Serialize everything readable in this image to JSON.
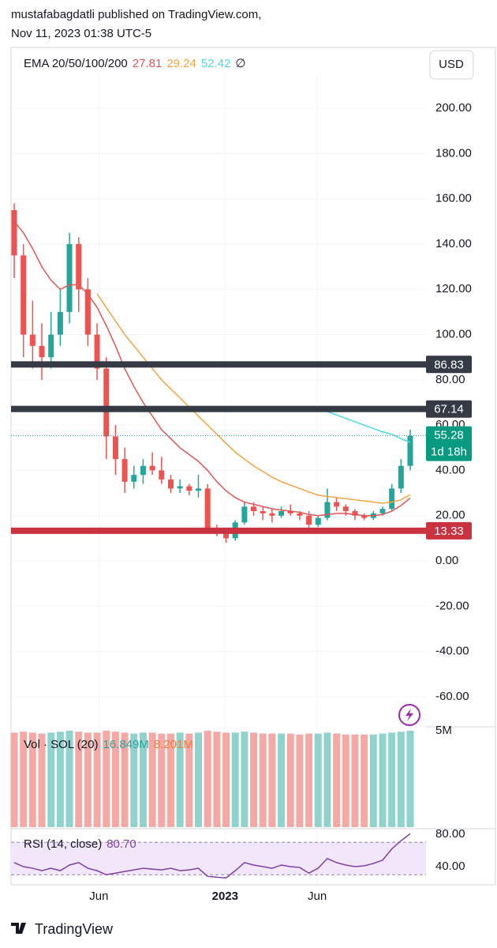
{
  "header": {
    "line1": "mustafabagdatli published on TradingView.com,",
    "line2": "Nov 11, 2023 01:38 UTC-5"
  },
  "currency": "USD",
  "footer": {
    "brand": "TradingView"
  },
  "chart_data": [
    {
      "type": "candlestick",
      "up_color": "#26a69a",
      "down_color": "#ef5350",
      "ylim": [
        -73.3,
        214.7
      ],
      "yticks": [
        {
          "value": 200,
          "label": "200.00"
        },
        {
          "value": 180,
          "label": "180.00"
        },
        {
          "value": 160,
          "label": "160.00"
        },
        {
          "value": 140,
          "label": "140.00"
        },
        {
          "value": 120,
          "label": "120.00"
        },
        {
          "value": 100,
          "label": "100.00"
        },
        {
          "value": 80,
          "label": "80.00"
        },
        {
          "value": 60,
          "label": "60.00"
        },
        {
          "value": 40,
          "label": "40.00"
        },
        {
          "value": 20,
          "label": "20.00"
        },
        {
          "value": 0,
          "label": "0.00"
        },
        {
          "value": -20,
          "label": "-20.00"
        },
        {
          "value": -40,
          "label": "-40.00"
        },
        {
          "value": -60,
          "label": "-60.00"
        }
      ],
      "xticks": [
        {
          "value": 9.2,
          "label": "Jun"
        },
        {
          "value": 22.9,
          "label": "2023"
        },
        {
          "value": 32.9,
          "label": "Jun"
        }
      ],
      "grid": true,
      "open": [
        155,
        135,
        100,
        95,
        90,
        100,
        110,
        140,
        120,
        100,
        85,
        55,
        45,
        35,
        38,
        42,
        40,
        36,
        32,
        33,
        31,
        32,
        14,
        13,
        10,
        17,
        24,
        22,
        21,
        20,
        22,
        21,
        20,
        16,
        19,
        26,
        24,
        22,
        20,
        19,
        21,
        23,
        32,
        42
      ],
      "high": [
        158,
        140,
        115,
        105,
        110,
        120,
        145,
        143,
        125,
        105,
        90,
        60,
        50,
        42,
        45,
        48,
        46,
        38,
        36,
        34,
        38,
        34,
        16,
        14,
        18,
        26,
        26,
        24,
        23,
        24,
        25,
        22,
        22,
        20,
        32,
        28,
        25,
        23,
        21,
        22,
        24,
        34,
        45,
        58
      ],
      "low": [
        125,
        90,
        85,
        80,
        85,
        95,
        105,
        110,
        95,
        80,
        45,
        38,
        30,
        32,
        34,
        38,
        34,
        30,
        30,
        29,
        28,
        12,
        11,
        8,
        9,
        16,
        20,
        18,
        17,
        19,
        20,
        18,
        14,
        15,
        18,
        22,
        20,
        18,
        18,
        18,
        20,
        22,
        30,
        40
      ],
      "close": [
        135,
        100,
        95,
        90,
        100,
        110,
        140,
        120,
        100,
        85,
        55,
        45,
        35,
        38,
        42,
        40,
        36,
        32,
        33,
        31,
        32,
        14,
        13,
        10,
        17,
        24,
        22,
        21,
        20,
        22,
        21,
        20,
        16,
        19,
        26,
        24,
        22,
        20,
        19,
        21,
        23,
        32,
        42,
        55.28
      ],
      "last_price_color": "#089981",
      "countdown": "1d 18h",
      "levels": [
        {
          "value": 86.83,
          "color": "#363a45"
        },
        {
          "value": 67.14,
          "color": "#363a45"
        },
        {
          "value": 13.33,
          "color": "#c9323f"
        }
      ],
      "ema": {
        "label": "EMA 20/50/100/200",
        "off_symbol": "∅",
        "series": [
          {
            "color": "#e05555",
            "values": [
              150,
              145,
              138,
              130,
              124,
              120,
              122,
              122,
              118,
              112,
              104,
              95,
              85,
              77,
              70,
              64,
              58,
              54,
              50,
              47,
              44,
              40,
              35,
              31,
              28,
              26,
              25,
              24,
              23,
              22.5,
              22,
              21.5,
              20.5,
              20,
              20.5,
              21,
              21,
              20.5,
              20,
              20,
              20.5,
              22,
              24.5,
              27.81
            ]
          },
          {
            "color": "#f5a243",
            "values": [
              null,
              null,
              null,
              null,
              null,
              null,
              null,
              null,
              null,
              118,
              112,
              106,
              100,
              95,
              90,
              85,
              80,
              76,
              72,
              68,
              64,
              60,
              56,
              52,
              48,
              45,
              42,
              39.5,
              37,
              35,
              33.5,
              32,
              30.5,
              29,
              28.5,
              28,
              27.5,
              27,
              26.5,
              26,
              25.5,
              26,
              27,
              29.24
            ]
          },
          {
            "color": "#4dd9e0",
            "values": [
              null,
              null,
              null,
              null,
              null,
              null,
              null,
              null,
              null,
              null,
              null,
              null,
              null,
              null,
              null,
              null,
              null,
              null,
              null,
              null,
              null,
              null,
              null,
              null,
              null,
              null,
              null,
              null,
              null,
              null,
              null,
              null,
              null,
              68,
              66,
              64.5,
              63,
              61.5,
              60,
              58.5,
              57,
              56,
              54,
              52.42
            ]
          }
        ]
      }
    },
    {
      "type": "bar",
      "title": "Vol · SOL (20)",
      "legend_values": [
        "16.849M",
        "8.201M"
      ],
      "legend_colors": [
        "#26a69a",
        "#f57c3a"
      ],
      "up_color": "#8fd3cc",
      "down_color": "#f4a9a4",
      "ylim": [
        0,
        5120000
      ],
      "yticks": [
        {
          "value": 5000000,
          "label": "5M"
        }
      ],
      "values": [
        4900000,
        4950000,
        4900000,
        4850000,
        4900000,
        4950000,
        5000000,
        4950000,
        4900000,
        4900000,
        5000000,
        4950000,
        4900000,
        4850000,
        4900000,
        4900000,
        4850000,
        4850000,
        4900000,
        4850000,
        4900000,
        5000000,
        4950000,
        4900000,
        4900000,
        4950000,
        4900000,
        4850000,
        4850000,
        4850000,
        4850000,
        4800000,
        4850000,
        4850000,
        4900000,
        4850000,
        4800000,
        4800000,
        4800000,
        4800000,
        4850000,
        4900000,
        4950000,
        5000000
      ]
    },
    {
      "type": "line",
      "title": "RSI (14, close)",
      "legend_value": "80.70",
      "color": "#7e3fa3",
      "band": [
        30,
        70
      ],
      "band_color": "#f1e6fa",
      "ylim": [
        20.5,
        85.9
      ],
      "yticks": [
        {
          "value": 80,
          "label": "80.00"
        },
        {
          "value": 40,
          "label": "40.00"
        }
      ],
      "values": [
        45,
        40,
        38,
        35,
        38,
        35,
        42,
        45,
        38,
        35,
        30,
        32,
        34,
        36,
        38,
        37,
        36,
        38,
        35,
        36,
        38,
        28,
        27,
        26,
        35,
        45,
        42,
        40,
        38,
        42,
        40,
        39,
        32,
        38,
        50,
        45,
        42,
        40,
        41,
        44,
        48,
        62,
        72,
        80.7
      ]
    }
  ]
}
